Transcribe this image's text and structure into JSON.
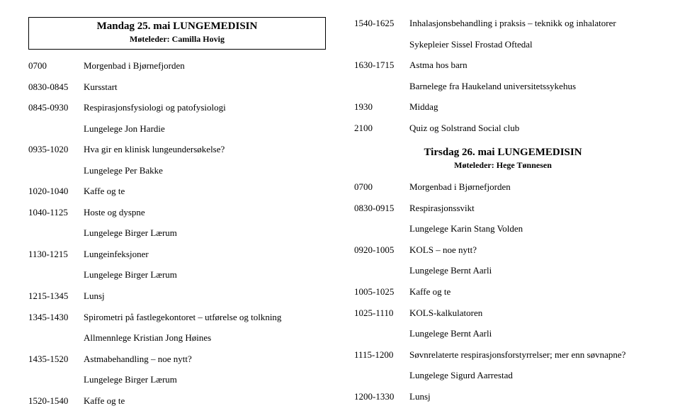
{
  "left": {
    "header": {
      "title": "Mandag 25. mai LUNGEMEDISIN",
      "sub": "Møteleder: Camilla Hovig"
    },
    "rows": [
      {
        "time": "0700",
        "desc": "Morgenbad i Bjørnefjorden"
      },
      {
        "time": "0830-0845",
        "desc": "Kursstart"
      },
      {
        "time": "0845-0930",
        "desc": "Respirasjonsfysiologi og patofysiologi"
      },
      {
        "time": "",
        "desc": "Lungelege Jon Hardie"
      },
      {
        "time": "0935-1020",
        "desc": "Hva gir en klinisk lungeundersøkelse?"
      },
      {
        "time": "",
        "desc": "Lungelege Per Bakke"
      },
      {
        "time": "1020-1040",
        "desc": "Kaffe og te"
      },
      {
        "time": "1040-1125",
        "desc": "Hoste og dyspne"
      },
      {
        "time": "",
        "desc": "Lungelege Birger Lærum"
      },
      {
        "time": "1130-1215",
        "desc": "Lungeinfeksjoner"
      },
      {
        "time": "",
        "desc": "Lungelege Birger Lærum"
      },
      {
        "time": "1215-1345",
        "desc": "Lunsj"
      },
      {
        "time": "1345-1430",
        "desc": "Spirometri på fastlegekontoret – utførelse og tolkning"
      },
      {
        "time": "",
        "desc": "Allmennlege Kristian Jong Høines"
      },
      {
        "time": "1435-1520",
        "desc": "Astmabehandling – noe nytt?"
      },
      {
        "time": "",
        "desc": "Lungelege Birger Lærum"
      },
      {
        "time": "1520-1540",
        "desc": "Kaffe og te"
      }
    ]
  },
  "right": {
    "top_rows": [
      {
        "time": "1540-1625",
        "desc": "Inhalasjonsbehandling i praksis – teknikk og inhalatorer"
      },
      {
        "time": "",
        "desc": "Sykepleier Sissel Frostad Oftedal"
      },
      {
        "time": "1630-1715",
        "desc": "Astma hos barn"
      },
      {
        "time": "",
        "desc": "Barnelege fra Haukeland universitetssykehus"
      },
      {
        "time": "1930",
        "desc": "Middag"
      },
      {
        "time": "2100",
        "desc": "Quiz og Solstrand Social club"
      }
    ],
    "header": {
      "title": "Tirsdag 26. mai LUNGEMEDISIN",
      "sub": "Møteleder: Hege Tønnesen"
    },
    "bottom_rows": [
      {
        "time": "0700",
        "desc": "Morgenbad i Bjørnefjorden"
      },
      {
        "time": "0830-0915",
        "desc": "Respirasjonssvikt"
      },
      {
        "time": "",
        "desc": "Lungelege Karin Stang Volden"
      },
      {
        "time": "0920-1005",
        "desc": "KOLS – noe nytt?"
      },
      {
        "time": "",
        "desc": "Lungelege Bernt Aarli"
      },
      {
        "time": "1005-1025",
        "desc": "Kaffe og te"
      },
      {
        "time": "1025-1110",
        "desc": " KOLS-kalkulatoren"
      },
      {
        "time": "",
        "desc": "Lungelege Bernt Aarli"
      },
      {
        "time": "1115-1200",
        "desc": "Søvnrelaterte respirasjonsforstyrrelser; mer enn søvnapne?"
      },
      {
        "time": "",
        "desc": "Lungelege Sigurd Aarrestad"
      },
      {
        "time": "1200-1330",
        "desc": "Lunsj"
      }
    ]
  }
}
